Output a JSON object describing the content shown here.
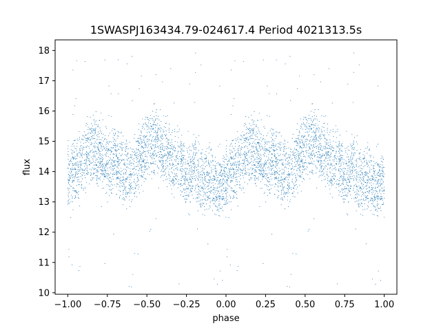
{
  "chart_data": {
    "type": "scatter",
    "title": "1SWASPJ163434.79-024617.4 Period 4021313.5s",
    "xlabel": "phase",
    "ylabel": "flux",
    "xlim": [
      -1.08,
      1.08
    ],
    "ylim": [
      9.95,
      18.35
    ],
    "grid": false,
    "legend": "none",
    "marker_color": "#1f77b4",
    "x_ticks": [
      -1.0,
      -0.75,
      -0.5,
      -0.25,
      0.0,
      0.25,
      0.5,
      0.75,
      1.0
    ],
    "x_tick_labels": [
      "−1.00",
      "−0.75",
      "−0.50",
      "−0.25",
      "0.00",
      "0.25",
      "0.50",
      "0.75",
      "1.00"
    ],
    "y_ticks": [
      10,
      11,
      12,
      13,
      14,
      15,
      16,
      17,
      18
    ],
    "y_tick_labels": [
      "10",
      "11",
      "12",
      "13",
      "14",
      "15",
      "16",
      "17",
      "18"
    ],
    "series": [
      {
        "profile_phase": [
          0.0,
          0.05,
          0.1,
          0.15,
          0.2,
          0.25,
          0.3,
          0.35,
          0.4,
          0.45,
          0.5,
          0.55,
          0.6,
          0.65,
          0.7,
          0.75,
          0.8,
          0.85,
          0.9,
          0.95,
          1.0
        ],
        "profile_median_flux": [
          13.7,
          14.0,
          14.3,
          14.8,
          14.6,
          14.2,
          14.5,
          14.0,
          13.9,
          14.4,
          14.8,
          15.0,
          14.8,
          14.5,
          14.3,
          13.7,
          14.1,
          13.6,
          13.9,
          13.5,
          13.7
        ]
      }
    ]
  }
}
